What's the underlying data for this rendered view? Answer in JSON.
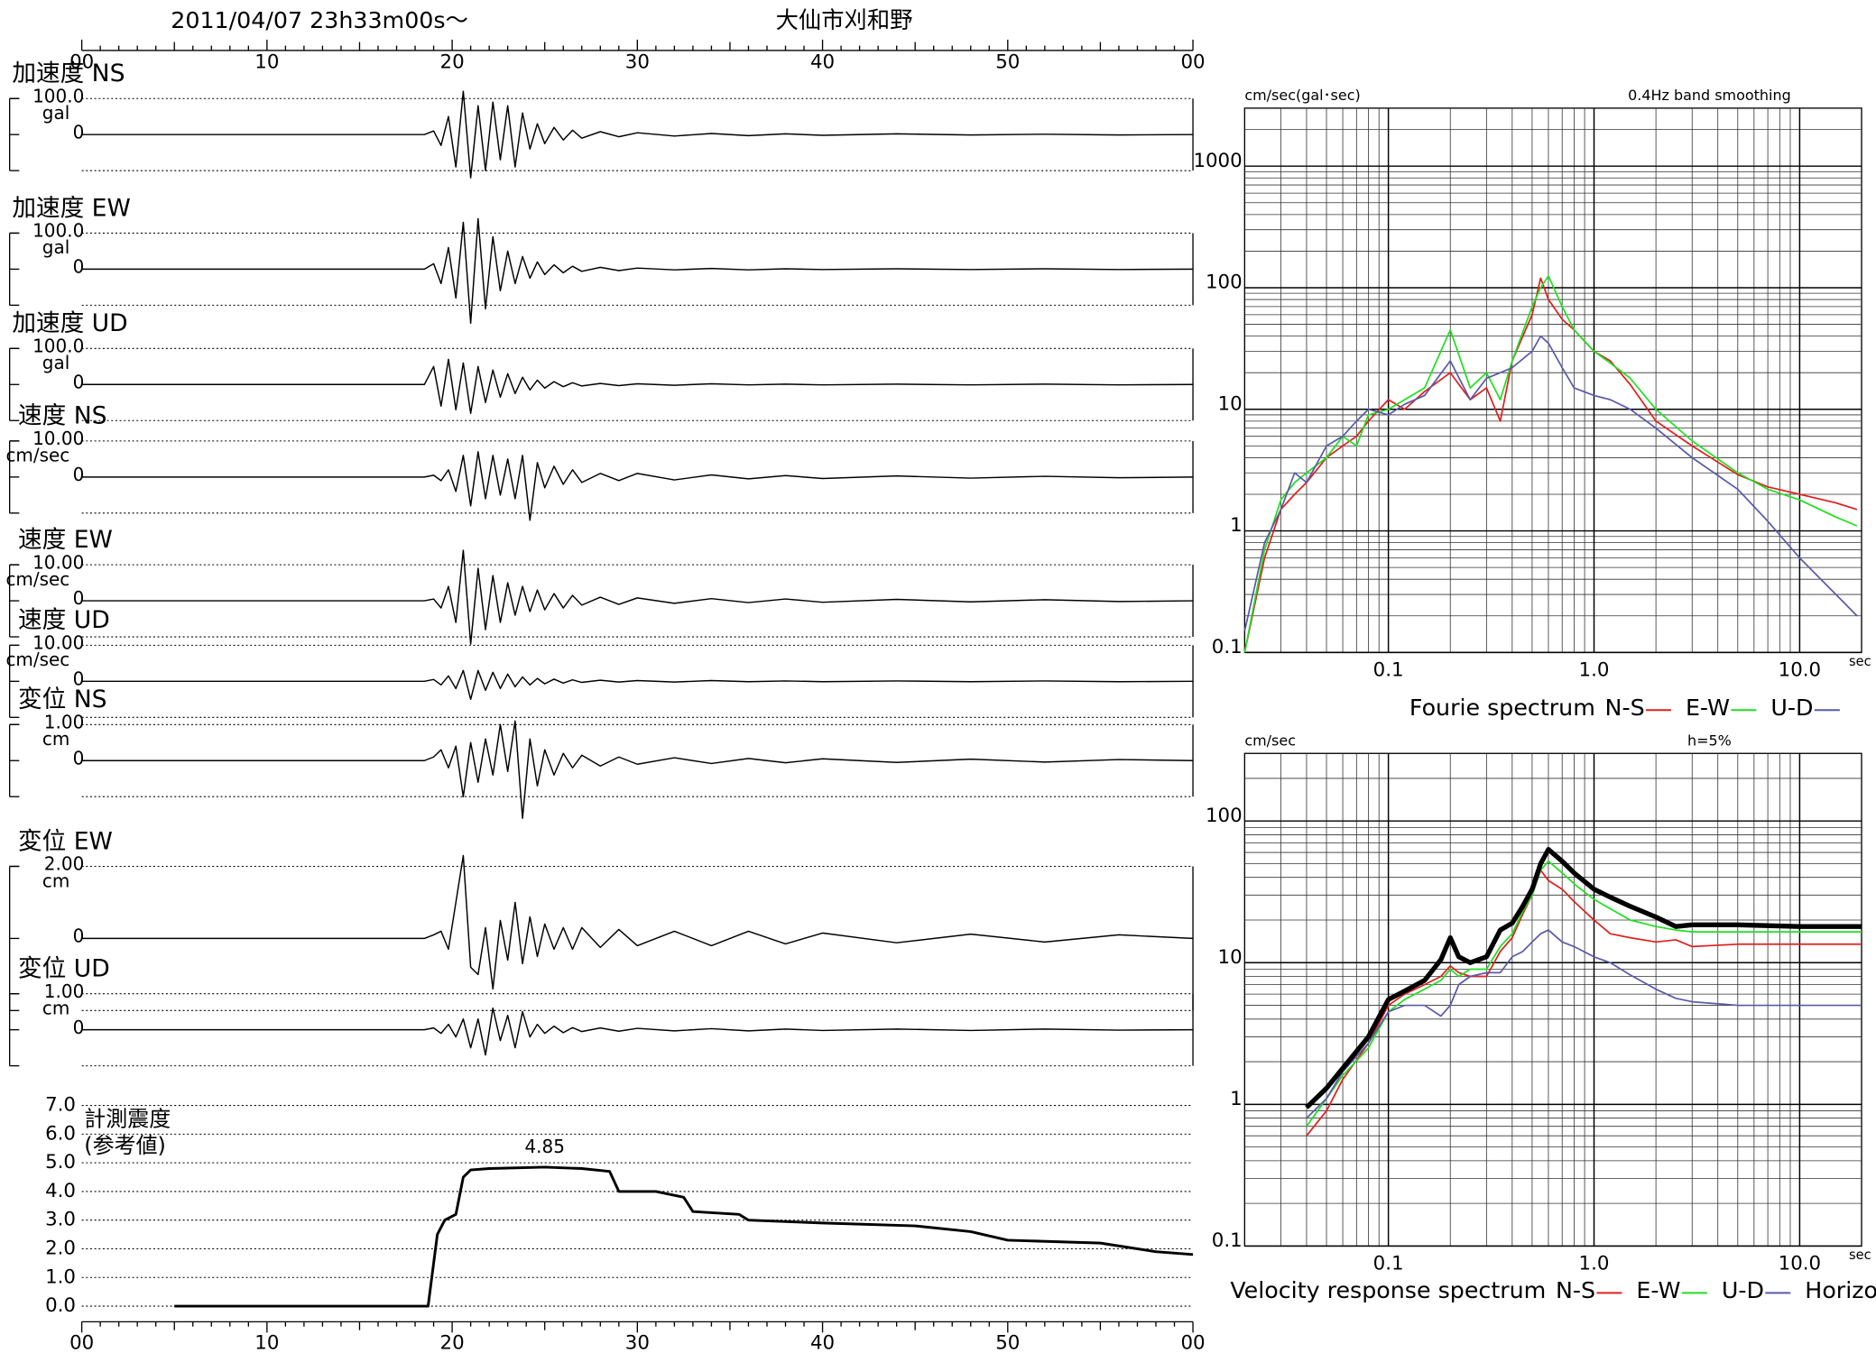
{
  "header": {
    "datetime": "2011/04/07  23h33m00s〜",
    "station": "大仙市刈和野"
  },
  "chart_data": [
    {
      "type": "waveform",
      "label": "加速度 NS",
      "unit": "gal",
      "xlim": [
        0,
        60
      ],
      "xticks": [
        {
          "value": 0,
          "label": "00"
        },
        10,
        20,
        30,
        40,
        50,
        {
          "value": 60,
          "label": "00"
        }
      ],
      "x": [
        0,
        18.5,
        19,
        19.4,
        19.8,
        20.2,
        20.6,
        21,
        21.4,
        21.8,
        22.2,
        22.6,
        23,
        23.4,
        23.8,
        24.2,
        24.6,
        25,
        25.5,
        26,
        26.5,
        27,
        28,
        29,
        30,
        32,
        34,
        36,
        38,
        40,
        44,
        48,
        52,
        56,
        60
      ],
      "values": [
        0,
        0,
        10,
        -30,
        50,
        -90,
        120,
        -120,
        80,
        -100,
        90,
        -70,
        80,
        -90,
        60,
        -40,
        30,
        -25,
        20,
        -15,
        12,
        -10,
        8,
        -6,
        5,
        -4,
        3,
        -3,
        2,
        -2,
        2,
        -1,
        1,
        -1,
        0
      ],
      "ylim": [
        -100,
        100
      ],
      "yticks": [
        {
          "value": 100,
          "label": "100.0"
        },
        0
      ],
      "color": "#000000"
    },
    {
      "type": "waveform",
      "label": "加速度 EW",
      "unit": "gal",
      "xlim": [
        0,
        60
      ],
      "x": [
        0,
        18.5,
        19,
        19.4,
        19.8,
        20.2,
        20.6,
        21,
        21.4,
        21.8,
        22.2,
        22.6,
        23,
        23.4,
        23.8,
        24.2,
        24.6,
        25,
        25.5,
        26,
        26.5,
        27,
        28,
        29,
        30,
        32,
        34,
        36,
        38,
        40,
        44,
        48,
        52,
        56,
        60
      ],
      "values": [
        0,
        0,
        15,
        -40,
        60,
        -80,
        130,
        -150,
        140,
        -110,
        90,
        -60,
        50,
        -40,
        35,
        -25,
        20,
        -15,
        12,
        -10,
        8,
        -6,
        5,
        -4,
        3,
        -2,
        2,
        -2,
        1,
        -1,
        1,
        -1,
        1,
        -1,
        0
      ],
      "ylim": [
        -100,
        100
      ],
      "yticks": [
        {
          "value": 100,
          "label": "100.0"
        },
        0
      ],
      "color": "#000000"
    },
    {
      "type": "waveform",
      "label": "加速度 UD",
      "unit": "gal",
      "xlim": [
        0,
        60
      ],
      "x": [
        0,
        18.5,
        19,
        19.4,
        19.8,
        20.2,
        20.6,
        21,
        21.4,
        21.8,
        22.2,
        22.6,
        23,
        23.4,
        23.8,
        24.2,
        24.6,
        25,
        25.5,
        26,
        26.5,
        27,
        28,
        29,
        30,
        32,
        34,
        36,
        38,
        40,
        44,
        48,
        52,
        56,
        60
      ],
      "values": [
        0,
        0,
        50,
        -60,
        70,
        -70,
        60,
        -80,
        50,
        -50,
        40,
        -35,
        30,
        -25,
        20,
        -15,
        12,
        -10,
        8,
        -6,
        5,
        -4,
        3,
        -3,
        2,
        -2,
        2,
        -1,
        1,
        -1,
        1,
        -1,
        1,
        -1,
        0
      ],
      "ylim": [
        -100,
        100
      ],
      "yticks": [
        {
          "value": 100,
          "label": "100.0"
        },
        0
      ],
      "color": "#000000"
    },
    {
      "type": "waveform",
      "label": "速度 NS",
      "unit": "cm/sec",
      "xlim": [
        0,
        60
      ],
      "x": [
        0,
        18.5,
        19,
        19.4,
        19.8,
        20.2,
        20.6,
        21,
        21.4,
        21.8,
        22.2,
        22.6,
        23,
        23.4,
        23.8,
        24.2,
        24.6,
        25,
        25.5,
        26,
        26.5,
        27,
        28,
        29,
        30,
        32,
        34,
        36,
        38,
        40,
        44,
        48,
        52,
        56,
        60
      ],
      "values": [
        0,
        0,
        0.5,
        -1,
        2,
        -4,
        6,
        -8,
        7,
        -6,
        6,
        -5,
        5,
        -6,
        6,
        -12,
        4,
        -3,
        3,
        -2,
        2,
        -1.5,
        1,
        -1,
        1,
        -0.8,
        0.6,
        -0.5,
        0.4,
        -0.4,
        0.3,
        -0.3,
        0.2,
        -0.2,
        0
      ],
      "ylim": [
        -10,
        10
      ],
      "yticks": [
        {
          "value": 10,
          "label": "10.00"
        },
        0
      ],
      "color": "#000000"
    },
    {
      "type": "waveform",
      "label": "速度 EW",
      "unit": "cm/sec",
      "xlim": [
        0,
        60
      ],
      "x": [
        0,
        18.5,
        19,
        19.4,
        19.8,
        20.2,
        20.6,
        21,
        21.4,
        21.8,
        22.2,
        22.6,
        23,
        23.4,
        23.8,
        24.2,
        24.6,
        25,
        25.5,
        26,
        26.5,
        27,
        28,
        29,
        30,
        32,
        34,
        36,
        38,
        40,
        44,
        48,
        52,
        56,
        60
      ],
      "values": [
        0,
        0,
        0.5,
        -2,
        4,
        -6,
        14,
        -12,
        9,
        -8,
        7,
        -6,
        5,
        -4,
        4,
        -3,
        3,
        -2.5,
        2,
        -2,
        1.5,
        -1.2,
        1,
        -1,
        0.8,
        -0.7,
        0.6,
        -0.5,
        0.5,
        -0.4,
        0.4,
        -0.3,
        0.3,
        -0.2,
        0
      ],
      "ylim": [
        -10,
        10
      ],
      "yticks": [
        {
          "value": 10,
          "label": "10.00"
        },
        0
      ],
      "color": "#000000"
    },
    {
      "type": "waveform",
      "label": "速度 UD",
      "unit": "cm/sec",
      "xlim": [
        0,
        60
      ],
      "x": [
        0,
        18.5,
        19,
        19.4,
        19.8,
        20.2,
        20.6,
        21,
        21.4,
        21.8,
        22.2,
        22.6,
        23,
        23.4,
        23.8,
        24.2,
        24.6,
        25,
        25.5,
        26,
        26.5,
        27,
        28,
        29,
        30,
        32,
        34,
        36,
        38,
        40,
        44,
        48,
        52,
        56,
        60
      ],
      "values": [
        0,
        0,
        0.5,
        -1,
        1.5,
        -2,
        3,
        -5,
        3,
        -2.5,
        2.5,
        -2,
        2,
        -1.5,
        1.2,
        -1,
        0.8,
        -0.7,
        0.6,
        -0.5,
        0.4,
        -0.3,
        0.3,
        -0.2,
        0.2,
        -0.2,
        0.2,
        -0.1,
        0.1,
        -0.1,
        0.1,
        -0.1,
        0.1,
        -0.1,
        0
      ],
      "ylim": [
        -10,
        10
      ],
      "yticks": [
        {
          "value": 10,
          "label": "10.00"
        },
        0
      ],
      "color": "#000000"
    },
    {
      "type": "waveform",
      "label": "変位 NS",
      "unit": "cm",
      "xlim": [
        0,
        60
      ],
      "x": [
        0,
        18.5,
        19,
        19.4,
        19.8,
        20.2,
        20.6,
        21,
        21.4,
        21.8,
        22.2,
        22.6,
        23,
        23.4,
        23.8,
        24.2,
        24.6,
        25,
        25.5,
        26,
        26.5,
        27,
        28,
        29,
        30,
        32,
        34,
        36,
        38,
        40,
        44,
        48,
        52,
        56,
        60
      ],
      "values": [
        0,
        0,
        0.1,
        0.3,
        -0.2,
        0.4,
        -1.0,
        0.5,
        -0.6,
        0.6,
        -0.4,
        1.0,
        -0.3,
        1.1,
        -1.6,
        0.6,
        -0.7,
        0.3,
        -0.4,
        0.2,
        -0.2,
        0.15,
        -0.15,
        0.1,
        -0.1,
        0.08,
        -0.08,
        0.06,
        -0.06,
        0.05,
        -0.05,
        0.04,
        -0.04,
        0.03,
        0
      ],
      "ylim": [
        -1,
        1
      ],
      "yticks": [
        {
          "value": 1,
          "label": "1.00"
        },
        0
      ],
      "color": "#000000"
    },
    {
      "type": "waveform",
      "label": "変位 EW",
      "unit": "cm",
      "xlim": [
        0,
        60
      ],
      "x": [
        0,
        18.5,
        19,
        19.4,
        19.8,
        20.2,
        20.6,
        21,
        21.4,
        21.8,
        22.2,
        22.6,
        23,
        23.4,
        23.8,
        24.2,
        24.6,
        25,
        25.5,
        26,
        26.5,
        27,
        28,
        29,
        30,
        32,
        34,
        36,
        38,
        40,
        44,
        48,
        52,
        56,
        60
      ],
      "values": [
        0,
        0,
        0.1,
        0.2,
        -0.3,
        1.0,
        2.3,
        -0.8,
        -1.0,
        0.3,
        -1.4,
        0.5,
        -0.6,
        1.0,
        -0.7,
        0.6,
        -0.5,
        0.4,
        -0.3,
        0.3,
        -0.3,
        0.3,
        -0.25,
        0.25,
        -0.2,
        0.2,
        -0.2,
        0.2,
        -0.15,
        0.15,
        -0.12,
        0.12,
        -0.1,
        0.1,
        0
      ],
      "ylim": [
        -2,
        2
      ],
      "yticks": [
        {
          "value": 2,
          "label": "2.00"
        },
        0
      ],
      "color": "#000000"
    },
    {
      "type": "waveform",
      "label": "変位 UD",
      "unit": "cm",
      "xlim": [
        0,
        60
      ],
      "x": [
        0,
        18.5,
        19,
        19.4,
        19.8,
        20.2,
        20.6,
        21,
        21.4,
        21.8,
        22.2,
        22.6,
        23,
        23.4,
        23.8,
        24.2,
        24.6,
        25,
        25.5,
        26,
        26.5,
        27,
        28,
        29,
        30,
        32,
        34,
        36,
        38,
        40,
        44,
        48,
        52,
        56,
        60
      ],
      "values": [
        0,
        0,
        0.05,
        -0.1,
        0.15,
        -0.2,
        0.3,
        -0.5,
        0.3,
        -0.7,
        0.6,
        -0.3,
        0.4,
        -0.5,
        0.5,
        -0.2,
        0.15,
        -0.1,
        0.1,
        -0.08,
        0.06,
        -0.05,
        0.05,
        -0.04,
        0.04,
        -0.03,
        0.03,
        -0.03,
        0.02,
        -0.02,
        0.02,
        -0.02,
        0.02,
        -0.01,
        0
      ],
      "ylim": [
        -1,
        1
      ],
      "yticks": [
        {
          "value": 1,
          "label": "1.00"
        },
        0
      ],
      "color": "#000000"
    },
    {
      "type": "line",
      "ylabel": [
        "計測震度",
        "(参考値)"
      ],
      "xlim": [
        0,
        60
      ],
      "xticks": [
        {
          "value": 0,
          "label": "00"
        },
        10,
        20,
        30,
        40,
        50,
        {
          "value": 60,
          "label": "00"
        }
      ],
      "x": [
        5,
        18.7,
        19.2,
        19.6,
        20.2,
        20.6,
        21,
        22,
        25,
        27,
        28.5,
        29,
        31,
        32.5,
        33,
        35.5,
        36,
        40,
        45,
        48,
        50,
        55,
        58,
        60
      ],
      "values": [
        0,
        0,
        2.5,
        3.0,
        3.2,
        4.5,
        4.75,
        4.8,
        4.85,
        4.8,
        4.7,
        4.0,
        4.0,
        3.8,
        3.3,
        3.2,
        3.0,
        2.9,
        2.8,
        2.6,
        2.3,
        2.2,
        1.9,
        1.8
      ],
      "annotated_index": 8,
      "ylim": [
        0,
        7
      ],
      "yticks": [
        {
          "value": 0,
          "label": "0.0"
        },
        {
          "value": 1,
          "label": "1.0"
        },
        {
          "value": 2,
          "label": "2.0"
        },
        {
          "value": 3,
          "label": "3.0"
        },
        {
          "value": 4,
          "label": "4.0"
        },
        {
          "value": 5,
          "label": "5.0"
        },
        {
          "value": 6,
          "label": "6.0"
        },
        {
          "value": 7,
          "label": "7.0"
        }
      ],
      "grid": true,
      "color": "#000000"
    },
    {
      "type": "spectrum",
      "title": "Fourie spectrum",
      "ylabel": "cm/sec(gal･sec)",
      "subtitle": "0.4Hz band smoothing",
      "xlabel": "sec",
      "xscale": "log",
      "yscale": "log",
      "grid": true,
      "xlim": [
        0.02,
        20
      ],
      "xticks": [
        0.1,
        {
          "value": 1,
          "label": "1.0"
        },
        {
          "value": 10,
          "label": "10.0"
        }
      ],
      "ylim": [
        0.1,
        3000
      ],
      "yticks": [
        0.1,
        1,
        10,
        100,
        1000
      ],
      "x": [
        0.02,
        0.025,
        0.03,
        0.035,
        0.04,
        0.05,
        0.06,
        0.07,
        0.08,
        0.1,
        0.12,
        0.15,
        0.2,
        0.25,
        0.3,
        0.35,
        0.4,
        0.5,
        0.55,
        0.6,
        0.7,
        0.8,
        1,
        1.2,
        1.5,
        2,
        3,
        5,
        7,
        10,
        15,
        19
      ],
      "series": [
        {
          "name": "N-S",
          "color": "#e02020",
          "values": [
            0.1,
            0.6,
            1.5,
            2,
            2.5,
            4,
            5,
            6,
            8,
            12,
            10,
            14,
            20,
            12,
            15,
            8,
            25,
            60,
            120,
            80,
            55,
            45,
            30,
            25,
            16,
            8,
            5,
            2.9,
            2.3,
            2,
            1.7,
            1.5
          ]
        },
        {
          "name": "E-W",
          "color": "#20e020",
          "values": [
            0.1,
            0.7,
            1.8,
            2.5,
            3,
            4,
            6,
            5,
            9,
            10,
            12,
            15,
            45,
            15,
            20,
            12,
            25,
            70,
            100,
            125,
            70,
            45,
            30,
            24,
            18,
            10,
            5.5,
            3,
            2.2,
            1.8,
            1.3,
            1.1
          ]
        },
        {
          "name": "U-D",
          "color": "#5a5aa8",
          "values": [
            0.15,
            0.8,
            1.5,
            3,
            2.5,
            5,
            6,
            8,
            10,
            9,
            11,
            13,
            25,
            12,
            18,
            20,
            22,
            30,
            40,
            35,
            22,
            15,
            13,
            12,
            10,
            7,
            4,
            2.2,
            1.2,
            0.6,
            0.3,
            0.2
          ]
        }
      ]
    },
    {
      "type": "spectrum",
      "title": "Velocity response spectrum",
      "ylabel": "cm/sec",
      "subtitle": "h=5%",
      "xlabel": "sec",
      "xscale": "log",
      "yscale": "log",
      "grid": true,
      "xlim": [
        0.02,
        20
      ],
      "xticks": [
        0.1,
        {
          "value": 1,
          "label": "1.0"
        },
        {
          "value": 10,
          "label": "10.0"
        }
      ],
      "ylim": [
        0.1,
        300
      ],
      "yticks": [
        0.1,
        1,
        10,
        100
      ],
      "x": [
        0.04,
        0.05,
        0.06,
        0.08,
        0.1,
        0.12,
        0.15,
        0.18,
        0.2,
        0.22,
        0.25,
        0.3,
        0.35,
        0.4,
        0.45,
        0.5,
        0.55,
        0.6,
        0.7,
        0.8,
        1,
        1.2,
        1.5,
        2,
        2.5,
        3,
        5,
        10,
        20
      ],
      "series": [
        {
          "name": "N-S",
          "color": "#e02020",
          "values": [
            0.6,
            0.9,
            1.5,
            2.7,
            5,
            6,
            7,
            8,
            9.5,
            8.5,
            8,
            8,
            12,
            15,
            22,
            30,
            45,
            38,
            33,
            27,
            20,
            16,
            15,
            14,
            14.5,
            13,
            13.5,
            13.5,
            13.5
          ]
        },
        {
          "name": "E-W",
          "color": "#20e020",
          "values": [
            0.7,
            1.1,
            1.6,
            2.5,
            4.5,
            5.5,
            6.5,
            7.5,
            9,
            8,
            9,
            9,
            13,
            16,
            23,
            30,
            45,
            52,
            43,
            36,
            28,
            24,
            20,
            18,
            17,
            16.5,
            16.5,
            16.5,
            16.5
          ]
        },
        {
          "name": "U-D",
          "color": "#5a5aa8",
          "values": [
            0.8,
            1.1,
            1.7,
            2.7,
            4.5,
            5,
            5,
            4.2,
            5,
            7,
            8,
            8.5,
            8.5,
            11,
            12,
            14,
            16,
            17,
            14,
            13,
            11,
            10,
            8.2,
            6.5,
            5.6,
            5.3,
            5,
            5,
            5
          ]
        },
        {
          "name": "Horizon",
          "color": "#000000",
          "values": [
            0.95,
            1.3,
            1.8,
            3,
            5.5,
            6.3,
            7.5,
            10.5,
            15,
            11,
            10,
            11,
            17,
            19,
            25,
            33,
            50,
            63,
            52,
            43,
            33,
            29,
            25,
            21,
            18,
            18.5,
            18.5,
            18,
            18
          ]
        }
      ]
    }
  ]
}
